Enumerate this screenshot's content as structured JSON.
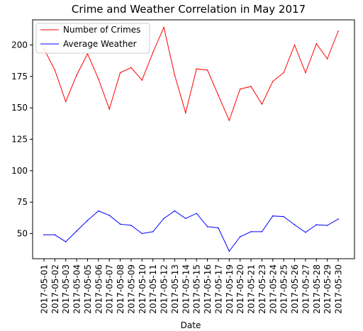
{
  "chart_data": {
    "type": "line",
    "title": "Crime and Weather Correlation in May 2017",
    "xlabel": "Date",
    "ylabel": "",
    "x": [
      "2017-05-01",
      "2017-05-02",
      "2017-05-03",
      "2017-05-04",
      "2017-05-05",
      "2017-05-06",
      "2017-05-07",
      "2017-05-08",
      "2017-05-09",
      "2017-05-10",
      "2017-05-11",
      "2017-05-12",
      "2017-05-13",
      "2017-05-14",
      "2017-05-15",
      "2017-05-16",
      "2017-05-17",
      "2017-05-19",
      "2017-05-20",
      "2017-05-21",
      "2017-05-23",
      "2017-05-24",
      "2017-05-25",
      "2017-05-26",
      "2017-05-27",
      "2017-05-28",
      "2017-05-29",
      "2017-05-30"
    ],
    "ylim": [
      30,
      220
    ],
    "yticks": [
      50,
      75,
      100,
      125,
      150,
      175,
      200
    ],
    "grid": false,
    "legend_position": "upper-left",
    "series": [
      {
        "name": "Number of Crimes",
        "color": "#ff0000",
        "values": [
          197,
          180,
          155,
          176,
          193,
          173,
          149,
          178,
          182,
          172,
          194,
          214,
          176,
          146,
          181,
          180,
          160,
          140,
          165,
          167,
          153,
          171,
          178,
          200,
          178,
          201,
          189,
          211
        ]
      },
      {
        "name": "Average Weather",
        "color": "#0000ff",
        "values": [
          49,
          49,
          43.5,
          52,
          60.5,
          68,
          64.5,
          57.5,
          56.5,
          50,
          51.5,
          62,
          68,
          62,
          66,
          55.5,
          54.5,
          36,
          47.5,
          51.5,
          51.5,
          64,
          63.5,
          57,
          51,
          57,
          56.5,
          61.5
        ]
      }
    ]
  }
}
